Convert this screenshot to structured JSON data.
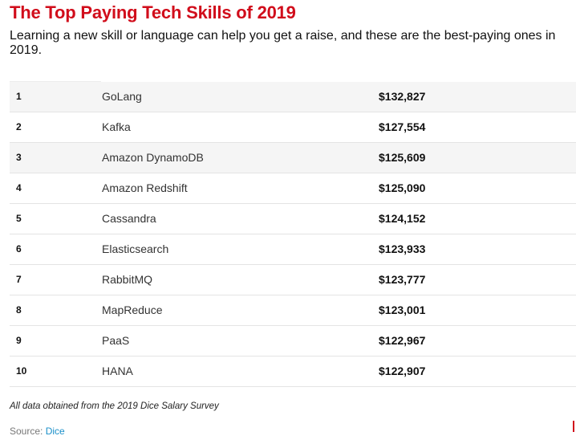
{
  "title": "The Top Paying Tech Skills of 2019",
  "subtitle": "Learning a new skill or language can help you get a raise, and these are the best-paying ones in 2019.",
  "chart_data": {
    "type": "table",
    "columns": [
      "",
      "",
      ""
    ],
    "rows": [
      {
        "rank": "1",
        "skill": "GoLang",
        "salary": "$132,827",
        "value": 132827
      },
      {
        "rank": "2",
        "skill": "Kafka",
        "salary": "$127,554",
        "value": 127554
      },
      {
        "rank": "3",
        "skill": "Amazon DynamoDB",
        "salary": "$125,609",
        "value": 125609
      },
      {
        "rank": "4",
        "skill": "Amazon Redshift",
        "salary": "$125,090",
        "value": 125090
      },
      {
        "rank": "5",
        "skill": "Cassandra",
        "salary": "$124,152",
        "value": 124152
      },
      {
        "rank": "6",
        "skill": "Elasticsearch",
        "salary": "$123,933",
        "value": 123933
      },
      {
        "rank": "7",
        "skill": "RabbitMQ",
        "salary": "$123,777",
        "value": 123777
      },
      {
        "rank": "8",
        "skill": "MapReduce",
        "salary": "$123,001",
        "value": 123001
      },
      {
        "rank": "9",
        "skill": "PaaS",
        "salary": "$122,967",
        "value": 122967
      },
      {
        "rank": "10",
        "skill": "HANA",
        "salary": "$122,907",
        "value": 122907
      }
    ]
  },
  "footnote": "All data obtained from the 2019 Dice Salary Survey",
  "source": {
    "label": "Source:",
    "link_text": "Dice"
  },
  "colors": {
    "title": "#d10d1b",
    "link": "#1a8fc9",
    "stripe": "#f5f5f5"
  }
}
